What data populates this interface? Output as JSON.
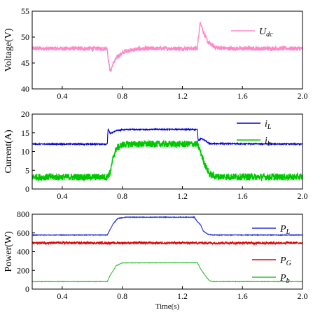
{
  "chart_data": [
    {
      "type": "line",
      "panel": "voltage",
      "ylabel": "Voltage(V)",
      "xlabel": "",
      "xlim": [
        0.2,
        2.0
      ],
      "ylim": [
        40,
        55
      ],
      "xticks": [
        0.4,
        0.8,
        1.2,
        1.6,
        2.0
      ],
      "xtick_labels": [
        "0.4",
        "0.8",
        "1.2",
        "1.6",
        "2.0"
      ],
      "yticks": [
        40,
        45,
        50,
        55
      ],
      "ytick_labels": [
        "40",
        "45",
        "50",
        "55"
      ],
      "legend": "top-right",
      "series": [
        {
          "name": "U",
          "name_sub": "dc",
          "color": "#ff88c8",
          "noise": 0.4,
          "points": [
            [
              0.2,
              47.8
            ],
            [
              0.7,
              47.8
            ],
            [
              0.705,
              46.0
            ],
            [
              0.72,
              43.3
            ],
            [
              0.74,
              45.0
            ],
            [
              0.77,
              46.3
            ],
            [
              0.82,
              47.3
            ],
            [
              0.9,
              47.7
            ],
            [
              1.0,
              47.8
            ],
            [
              1.3,
              47.8
            ],
            [
              1.305,
              49.5
            ],
            [
              1.32,
              53.0
            ],
            [
              1.34,
              51.0
            ],
            [
              1.37,
              49.0
            ],
            [
              1.42,
              48.0
            ],
            [
              1.5,
              47.8
            ],
            [
              2.0,
              47.8
            ]
          ]
        }
      ]
    },
    {
      "type": "line",
      "panel": "current",
      "ylabel": "Current(A)",
      "xlabel": "",
      "xlim": [
        0.2,
        2.0
      ],
      "ylim": [
        0,
        20
      ],
      "xticks": [
        0.4,
        0.8,
        1.2,
        1.6,
        2.0
      ],
      "xtick_labels": [
        "0.4",
        "0.8",
        "1.2",
        "1.6",
        "2.0"
      ],
      "yticks": [
        0,
        5,
        10,
        15,
        20
      ],
      "ytick_labels": [
        "0",
        "5",
        "10",
        "15",
        "20"
      ],
      "legend": "top-right",
      "series": [
        {
          "name": "i",
          "name_sub": "L",
          "color": "#0000d0",
          "noise": 0.15,
          "points": [
            [
              0.2,
              12.0
            ],
            [
              0.7,
              12.0
            ],
            [
              0.705,
              16.0
            ],
            [
              0.72,
              14.8
            ],
            [
              0.76,
              15.6
            ],
            [
              0.82,
              15.9
            ],
            [
              1.3,
              15.9
            ],
            [
              1.305,
              13.0
            ],
            [
              1.33,
              13.5
            ],
            [
              1.38,
              12.1
            ],
            [
              2.0,
              12.0
            ]
          ]
        },
        {
          "name": "i",
          "name_sub": "b",
          "color": "#00c800",
          "noise": 0.9,
          "points": [
            [
              0.2,
              3.2
            ],
            [
              0.7,
              3.2
            ],
            [
              0.72,
              4.5
            ],
            [
              0.74,
              8.5
            ],
            [
              0.76,
              10.8
            ],
            [
              0.8,
              11.8
            ],
            [
              0.85,
              12.0
            ],
            [
              1.3,
              12.0
            ],
            [
              1.32,
              10.0
            ],
            [
              1.35,
              6.5
            ],
            [
              1.38,
              4.0
            ],
            [
              1.42,
              3.3
            ],
            [
              2.0,
              3.2
            ]
          ]
        }
      ]
    },
    {
      "type": "line",
      "panel": "power",
      "ylabel": "Power(W)",
      "xlabel": "Time(s)",
      "xlim": [
        0.2,
        2.0
      ],
      "ylim": [
        0,
        800
      ],
      "xticks": [
        0.4,
        0.8,
        1.2,
        1.6,
        2.0
      ],
      "xtick_labels": [
        "0.4",
        "0.8",
        "1.2",
        "1.6",
        "2.0"
      ],
      "yticks": [
        0,
        200,
        400,
        600,
        800
      ],
      "ytick_labels": [
        "0",
        "200",
        "400",
        "600",
        "800"
      ],
      "legend": "right",
      "series": [
        {
          "name": "P",
          "name_sub": "L",
          "color": "#2030d8",
          "noise": 3,
          "points": [
            [
              0.2,
              578
            ],
            [
              0.7,
              578
            ],
            [
              0.72,
              640
            ],
            [
              0.74,
              700
            ],
            [
              0.77,
              755
            ],
            [
              0.82,
              768
            ],
            [
              1.28,
              768
            ],
            [
              1.3,
              720
            ],
            [
              1.32,
              690
            ],
            [
              1.34,
              620
            ],
            [
              1.37,
              585
            ],
            [
              1.4,
              578
            ],
            [
              2.0,
              578
            ]
          ]
        },
        {
          "name": "P",
          "name_sub": "G",
          "color": "#e00000",
          "noise": 12,
          "points": [
            [
              0.2,
              493
            ],
            [
              2.0,
              493
            ]
          ]
        },
        {
          "name": "P",
          "name_sub": "b",
          "color": "#30c030",
          "noise": 2,
          "points": [
            [
              0.2,
              80
            ],
            [
              0.7,
              80
            ],
            [
              0.72,
              150
            ],
            [
              0.76,
              250
            ],
            [
              0.8,
              280
            ],
            [
              1.3,
              282
            ],
            [
              1.32,
              220
            ],
            [
              1.35,
              150
            ],
            [
              1.38,
              90
            ],
            [
              1.4,
              80
            ],
            [
              2.0,
              80
            ]
          ]
        }
      ]
    }
  ]
}
